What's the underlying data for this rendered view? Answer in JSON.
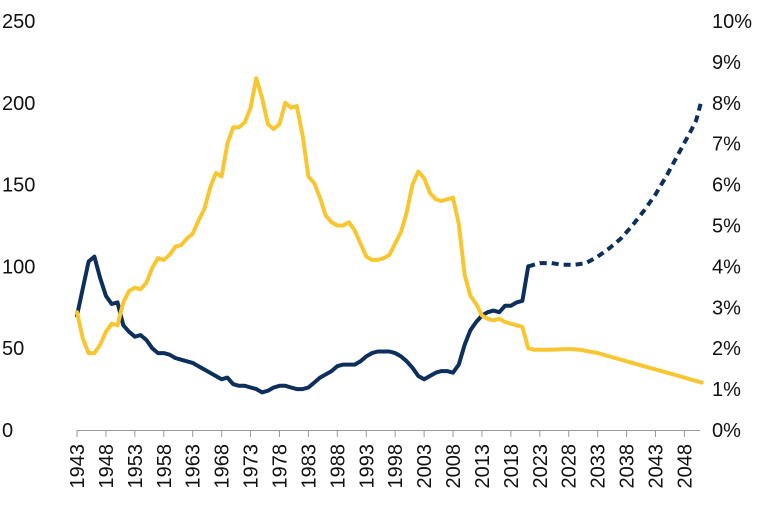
{
  "chart_data": {
    "type": "line",
    "x_ticks": [
      "1943",
      "1948",
      "1953",
      "1958",
      "1963",
      "1968",
      "1973",
      "1978",
      "1983",
      "1988",
      "1993",
      "1998",
      "2003",
      "2008",
      "2013",
      "2018",
      "2023",
      "2028",
      "2033",
      "2038",
      "2043",
      "2048"
    ],
    "y_left": {
      "ticks": [
        "250",
        "200",
        "150",
        "100",
        "50",
        "0"
      ],
      "range": [
        0,
        250
      ]
    },
    "y_right": {
      "ticks": [
        "10%",
        "9%",
        "8%",
        "7%",
        "6%",
        "5%",
        "4%",
        "3%",
        "2%",
        "1%",
        "0%"
      ],
      "range": [
        0,
        10
      ]
    },
    "x_range": [
      1943,
      2050
    ],
    "colors": {
      "navy": "#0d2f5c",
      "gold": "#f8c630"
    },
    "series": [
      {
        "axis": "left",
        "color": "#0d2f5c",
        "style": "solid",
        "points": [
          [
            1943,
            70
          ],
          [
            1945,
            103
          ],
          [
            1946,
            106
          ],
          [
            1947,
            93
          ],
          [
            1948,
            82
          ],
          [
            1949,
            77
          ],
          [
            1950,
            78
          ],
          [
            1951,
            64
          ],
          [
            1952,
            60
          ],
          [
            1953,
            57
          ],
          [
            1954,
            58
          ],
          [
            1955,
            55
          ],
          [
            1956,
            50
          ],
          [
            1957,
            47
          ],
          [
            1958,
            47
          ],
          [
            1959,
            46
          ],
          [
            1960,
            44
          ],
          [
            1961,
            43
          ],
          [
            1962,
            42
          ],
          [
            1963,
            41
          ],
          [
            1964,
            39
          ],
          [
            1965,
            37
          ],
          [
            1966,
            35
          ],
          [
            1967,
            33
          ],
          [
            1968,
            31
          ],
          [
            1969,
            32
          ],
          [
            1970,
            28
          ],
          [
            1971,
            27
          ],
          [
            1972,
            27
          ],
          [
            1973,
            26
          ],
          [
            1974,
            25
          ],
          [
            1975,
            23
          ],
          [
            1976,
            24
          ],
          [
            1977,
            26
          ],
          [
            1978,
            27
          ],
          [
            1979,
            27
          ],
          [
            1980,
            26
          ],
          [
            1981,
            25
          ],
          [
            1982,
            25
          ],
          [
            1983,
            26
          ],
          [
            1984,
            29
          ],
          [
            1985,
            32
          ],
          [
            1986,
            34
          ],
          [
            1987,
            36
          ],
          [
            1988,
            39
          ],
          [
            1989,
            40
          ],
          [
            1990,
            40
          ],
          [
            1991,
            40
          ],
          [
            1992,
            42
          ],
          [
            1993,
            45
          ],
          [
            1994,
            47
          ],
          [
            1995,
            48
          ],
          [
            1996,
            48
          ],
          [
            1997,
            48
          ],
          [
            1998,
            47
          ],
          [
            1999,
            45
          ],
          [
            2000,
            42
          ],
          [
            2001,
            38
          ],
          [
            2002,
            33
          ],
          [
            2003,
            31
          ],
          [
            2004,
            33
          ],
          [
            2005,
            35
          ],
          [
            2006,
            36
          ],
          [
            2007,
            36
          ],
          [
            2008,
            35
          ],
          [
            2009,
            40
          ],
          [
            2010,
            52
          ],
          [
            2011,
            61
          ],
          [
            2012,
            66
          ],
          [
            2013,
            70
          ],
          [
            2014,
            72
          ],
          [
            2015,
            73
          ],
          [
            2016,
            72
          ],
          [
            2017,
            76
          ],
          [
            2018,
            76
          ],
          [
            2019,
            78
          ],
          [
            2020,
            79
          ],
          [
            2021,
            100
          ]
        ]
      },
      {
        "axis": "left",
        "color": "#0d2f5c",
        "style": "dashed",
        "points": [
          [
            2021,
            100
          ],
          [
            2023,
            102
          ],
          [
            2025,
            102
          ],
          [
            2027,
            101
          ],
          [
            2029,
            101
          ],
          [
            2031,
            102
          ],
          [
            2033,
            106
          ],
          [
            2035,
            111
          ],
          [
            2037,
            117
          ],
          [
            2039,
            125
          ],
          [
            2041,
            134
          ],
          [
            2043,
            144
          ],
          [
            2045,
            156
          ],
          [
            2047,
            169
          ],
          [
            2049,
            182
          ],
          [
            2050,
            189
          ],
          [
            2051,
            202
          ]
        ]
      },
      {
        "axis": "left",
        "color": "#f8c630",
        "style": "solid",
        "points": [
          [
            1943,
            72
          ],
          [
            1944,
            56
          ],
          [
            1945,
            47
          ],
          [
            1946,
            47
          ],
          [
            1947,
            52
          ],
          [
            1948,
            60
          ],
          [
            1949,
            65
          ],
          [
            1950,
            64
          ],
          [
            1951,
            78
          ],
          [
            1952,
            85
          ],
          [
            1953,
            87
          ],
          [
            1954,
            86
          ],
          [
            1955,
            90
          ],
          [
            1956,
            99
          ],
          [
            1957,
            105
          ],
          [
            1958,
            104
          ],
          [
            1959,
            107
          ],
          [
            1960,
            112
          ],
          [
            1961,
            113
          ],
          [
            1962,
            117
          ],
          [
            1963,
            120
          ],
          [
            1964,
            128
          ],
          [
            1965,
            135
          ],
          [
            1966,
            148
          ],
          [
            1967,
            157
          ],
          [
            1968,
            155
          ],
          [
            1969,
            175
          ],
          [
            1970,
            185
          ],
          [
            1971,
            185
          ],
          [
            1972,
            188
          ],
          [
            1973,
            197
          ],
          [
            1974,
            215
          ],
          [
            1975,
            203
          ],
          [
            1976,
            187
          ],
          [
            1977,
            184
          ],
          [
            1978,
            187
          ],
          [
            1979,
            200
          ],
          [
            1980,
            197
          ],
          [
            1981,
            198
          ],
          [
            1982,
            180
          ],
          [
            1983,
            155
          ],
          [
            1984,
            151
          ],
          [
            1985,
            142
          ],
          [
            1986,
            131
          ],
          [
            1987,
            127
          ],
          [
            1988,
            125
          ],
          [
            1989,
            125
          ],
          [
            1990,
            127
          ],
          [
            1991,
            122
          ],
          [
            1992,
            114
          ],
          [
            1993,
            106
          ],
          [
            1994,
            104
          ],
          [
            1995,
            104
          ],
          [
            1996,
            105
          ],
          [
            1997,
            107
          ],
          [
            1998,
            114
          ],
          [
            1999,
            121
          ],
          [
            2000,
            133
          ],
          [
            2001,
            150
          ],
          [
            2002,
            158
          ],
          [
            2003,
            154
          ],
          [
            2004,
            145
          ],
          [
            2005,
            141
          ],
          [
            2006,
            140
          ],
          [
            2007,
            141
          ],
          [
            2008,
            142
          ],
          [
            2009,
            126
          ],
          [
            2010,
            95
          ],
          [
            2011,
            82
          ],
          [
            2012,
            77
          ],
          [
            2013,
            70
          ],
          [
            2014,
            68
          ],
          [
            2015,
            67
          ],
          [
            2016,
            68
          ],
          [
            2017,
            66
          ],
          [
            2018,
            65
          ],
          [
            2019,
            64
          ],
          [
            2020,
            63
          ],
          [
            2021,
            50
          ],
          [
            2022,
            49
          ],
          [
            2025,
            49
          ],
          [
            2028,
            49.5
          ],
          [
            2030,
            49
          ],
          [
            2033,
            47
          ],
          [
            2036,
            44
          ],
          [
            2039,
            41
          ],
          [
            2042,
            38
          ],
          [
            2045,
            35
          ],
          [
            2048,
            32
          ],
          [
            2050,
            30
          ],
          [
            2051,
            29
          ]
        ]
      }
    ]
  }
}
